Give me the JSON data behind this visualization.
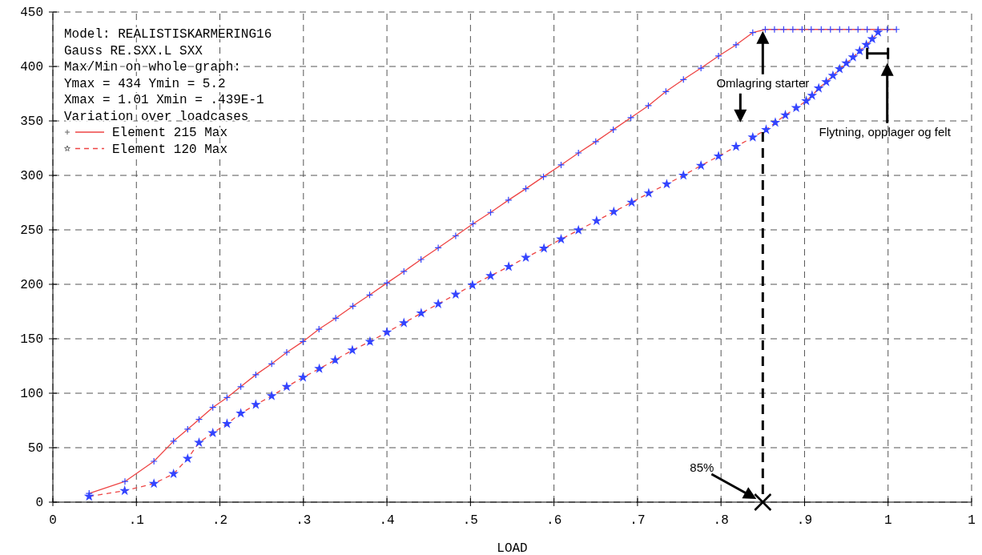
{
  "chart_data": {
    "type": "line",
    "xlabel": "LOAD",
    "xlim": [
      0,
      1.1
    ],
    "ylim": [
      0,
      450
    ],
    "xticks": [
      0,
      {
        "value": 0.1,
        "label": ".1"
      },
      {
        "value": 0.2,
        "label": ".2"
      },
      {
        "value": 0.3,
        "label": ".3"
      },
      {
        "value": 0.4,
        "label": ".4"
      },
      {
        "value": 0.5,
        "label": ".5"
      },
      {
        "value": 0.6,
        "label": ".6"
      },
      {
        "value": 0.7,
        "label": ".7"
      },
      {
        "value": 0.8,
        "label": ".8"
      },
      {
        "value": 0.9,
        "label": ".9"
      },
      1,
      {
        "value": 1.1,
        "label": "1"
      }
    ],
    "yticks": [
      0,
      50,
      100,
      150,
      200,
      250,
      300,
      350,
      400,
      450
    ],
    "grid": true,
    "legend": "top left",
    "series": [
      {
        "name": "Element 215 Max",
        "color": "#ee4444",
        "marker": "cross",
        "line_style": "solid",
        "x": [
          0.0434,
          0.0863,
          0.121,
          0.1445,
          0.1614,
          0.175,
          0.1915,
          0.2085,
          0.225,
          0.243,
          0.262,
          0.28,
          0.2995,
          0.3186,
          0.3387,
          0.3592,
          0.3793,
          0.4,
          0.4203,
          0.4408,
          0.4614,
          0.4823,
          0.503,
          0.5241,
          0.5455,
          0.5663,
          0.5874,
          0.6085,
          0.6293,
          0.65,
          0.671,
          0.692,
          0.713,
          0.734,
          0.755,
          0.776,
          0.797,
          0.818,
          0.838,
          0.853,
          0.864,
          0.875,
          0.886,
          0.897,
          0.908,
          0.92,
          0.931,
          0.942,
          0.953,
          0.964,
          0.975,
          0.988,
          0.999,
          1.01
        ],
        "values": [
          8,
          19,
          37.5,
          56,
          67,
          76,
          87,
          96,
          106,
          117,
          127,
          137.5,
          147.5,
          158.8,
          168.9,
          179.9,
          190.2,
          201.2,
          211.8,
          222.8,
          233.5,
          244.5,
          255.5,
          266,
          277.3,
          287.8,
          298.8,
          309.6,
          320.6,
          331,
          342,
          353,
          364,
          377,
          388,
          398.5,
          409.6,
          419.9,
          431.1,
          434,
          434,
          434,
          434,
          434,
          434,
          434,
          434,
          434,
          434,
          434,
          434,
          434,
          434,
          434
        ]
      },
      {
        "name": "Element 120 Max",
        "color": "#ee4444",
        "marker": "star",
        "line_style": "dashed",
        "x": [
          0.0434,
          0.086,
          0.121,
          0.1445,
          0.1614,
          0.175,
          0.1915,
          0.2085,
          0.225,
          0.243,
          0.262,
          0.28,
          0.2995,
          0.319,
          0.338,
          0.3586,
          0.3797,
          0.4,
          0.4203,
          0.441,
          0.4614,
          0.4823,
          0.5024,
          0.5241,
          0.5458,
          0.5663,
          0.588,
          0.6085,
          0.6293,
          0.651,
          0.6716,
          0.693,
          0.7134,
          0.735,
          0.755,
          0.776,
          0.797,
          0.818,
          0.838,
          0.854,
          0.865,
          0.877,
          0.89,
          0.902,
          0.909,
          0.917,
          0.926,
          0.934,
          0.942,
          0.95,
          0.958,
          0.966,
          0.974,
          0.981,
          0.988
        ],
        "values": [
          5.2,
          10.5,
          17,
          26,
          40,
          54.7,
          63.5,
          72,
          81.5,
          89.5,
          97.5,
          106,
          114.5,
          122.5,
          130.5,
          139.5,
          147.4,
          156,
          164.5,
          173.5,
          182,
          190.7,
          199.3,
          207.8,
          216.2,
          224.5,
          233,
          241.4,
          249.7,
          258.3,
          266.6,
          275.2,
          283.6,
          292,
          300,
          309,
          317.6,
          326.5,
          335,
          341.9,
          348.5,
          355.3,
          362,
          368.4,
          373.3,
          380,
          385.8,
          391.6,
          397.7,
          403,
          408.5,
          414.3,
          419.9,
          425.3,
          431.4
        ]
      }
    ],
    "ref_lines": [
      {
        "axis": "x",
        "value": 0.85,
        "color": "#000000",
        "line_style": "dashed"
      }
    ],
    "annotations": [
      "Model: REALISTISKARMERING16",
      "Gauss RE.SXX.L SXX",
      "Max/Min on whole graph:",
      "Ymax = 434  Ymin = 5.2",
      "Xmax = 1.01  Xmin = .439E-1",
      "Variation over loadcases",
      "Omlagring starter",
      "Flytning, opplager og felt",
      "85%"
    ]
  }
}
